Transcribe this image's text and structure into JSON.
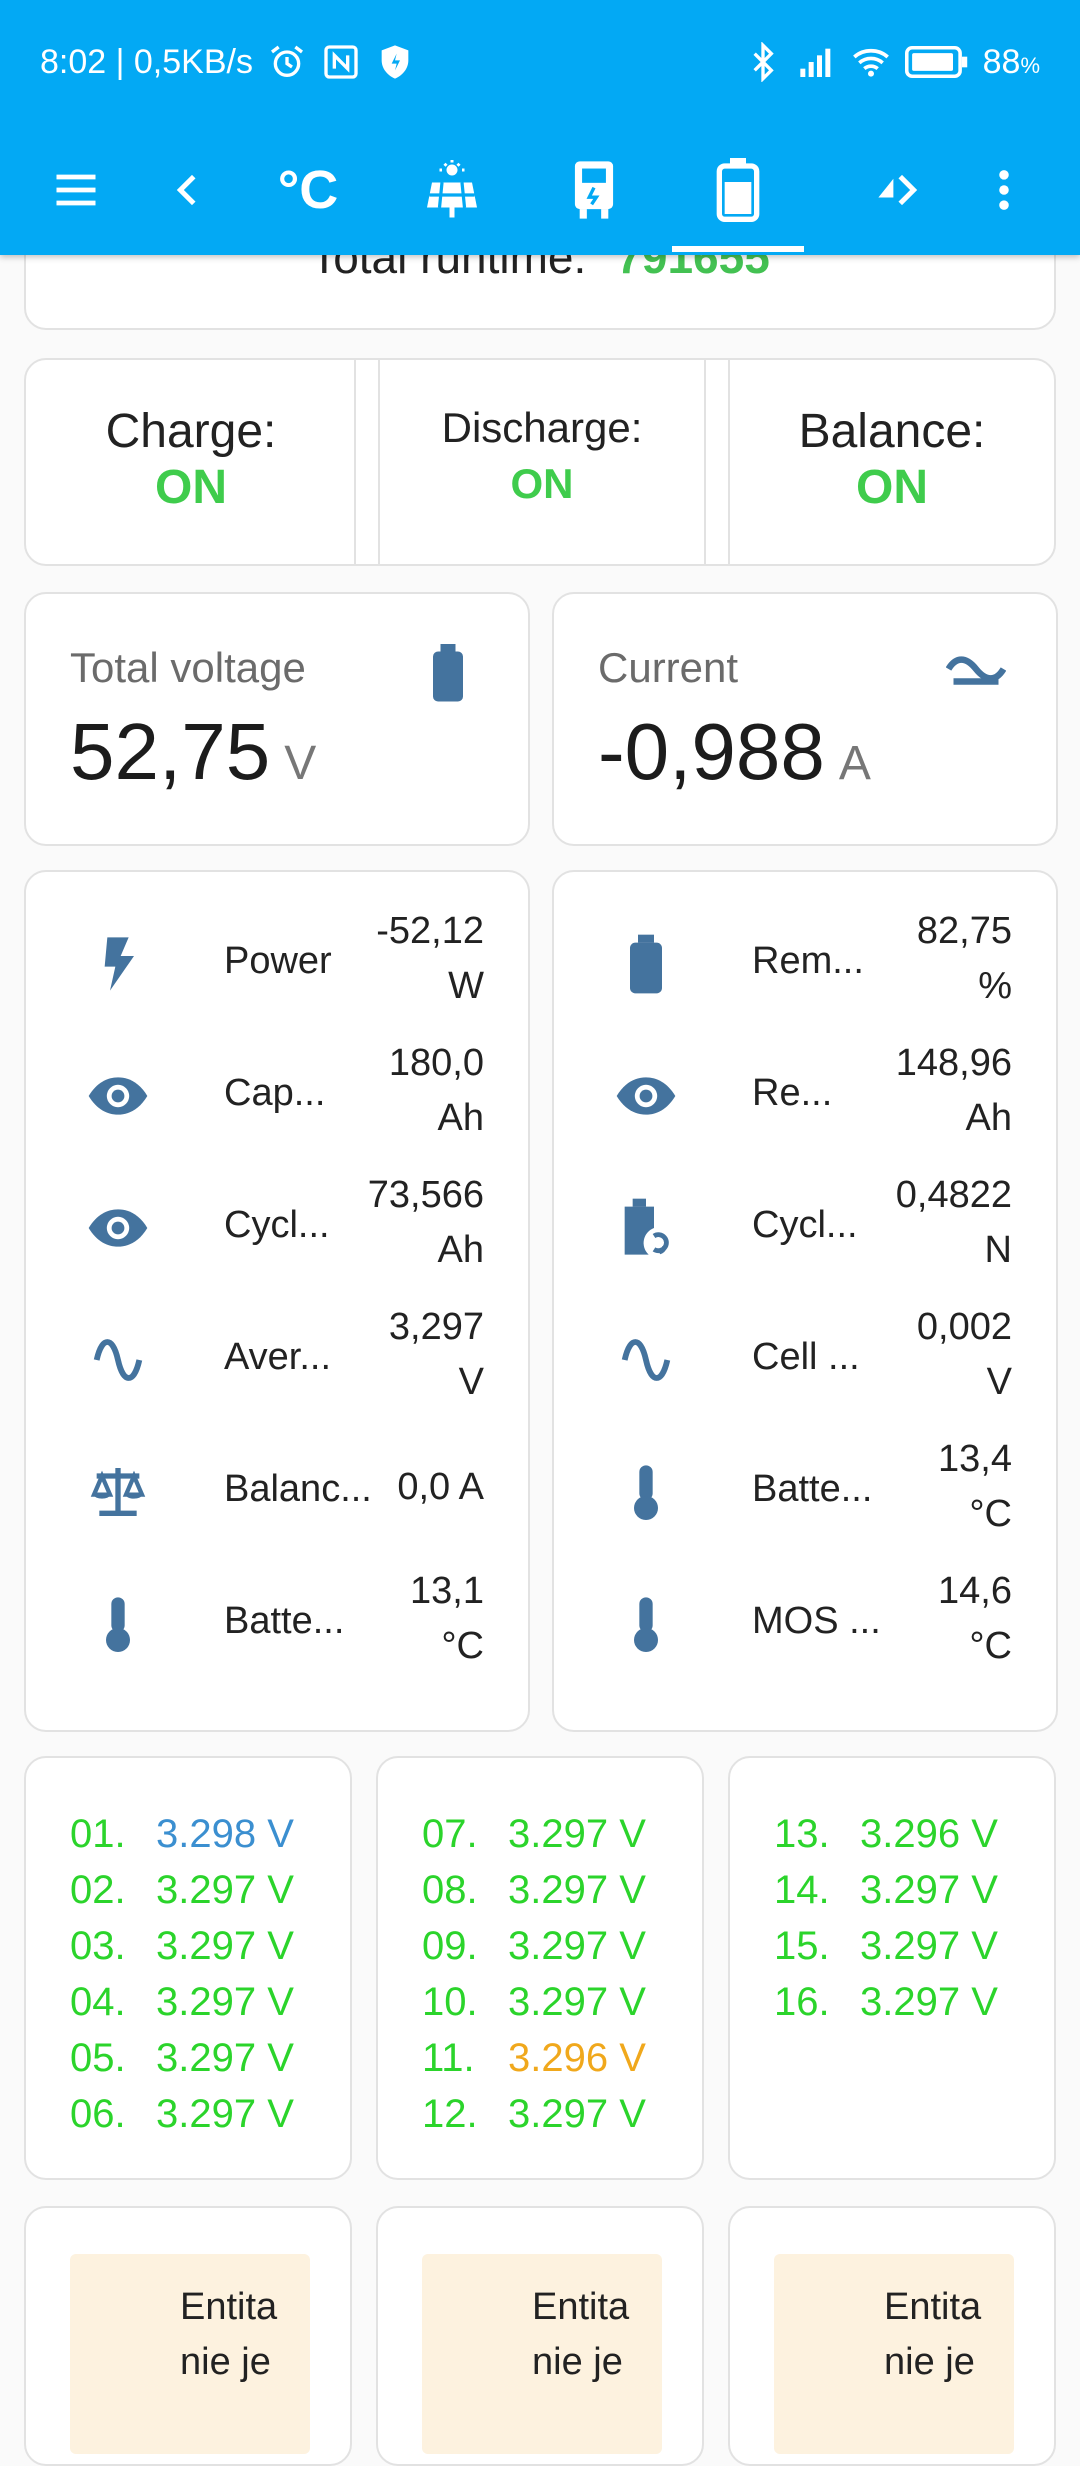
{
  "status": {
    "time_speed": "8:02 | 0,5KB/s",
    "battery_pct": "88",
    "battery_suffix": "%"
  },
  "toolbar": {
    "temp_icon_label": "°C"
  },
  "runtime": {
    "label": "Total runtime:",
    "value": "791655"
  },
  "switches": [
    {
      "label": "Charge:",
      "value": "ON"
    },
    {
      "label": "Discharge:",
      "value": "ON"
    },
    {
      "label": "Balance:",
      "value": "ON"
    }
  ],
  "voltage": {
    "title": "Total voltage",
    "value": "52,75",
    "unit": "V"
  },
  "current": {
    "title": "Current",
    "value": "-0,988",
    "unit": "A"
  },
  "left_entities": [
    {
      "icon": "lightning-icon",
      "name": "Power",
      "value": "-52,12",
      "unit": "W"
    },
    {
      "icon": "eye-icon",
      "name": "Cap...",
      "value": "180,0",
      "unit": "Ah"
    },
    {
      "icon": "eye-icon",
      "name": "Cycl...",
      "value": "73,566",
      "unit": "Ah"
    },
    {
      "icon": "sine-wave-icon",
      "name": "Aver...",
      "value": "3,297",
      "unit": "V"
    },
    {
      "icon": "scale-balance-icon",
      "name": "Balanc...",
      "value": "0,0 A",
      "unit": ""
    },
    {
      "icon": "thermometer-icon",
      "name": "Batte...",
      "value": "13,1",
      "unit": "°C"
    }
  ],
  "right_entities": [
    {
      "icon": "battery-icon",
      "name": "Rem...",
      "value": "82,75",
      "unit": "%"
    },
    {
      "icon": "eye-icon",
      "name": "Re...",
      "value": "148,96",
      "unit": "Ah"
    },
    {
      "icon": "battery-sync-icon",
      "name": "Cycl...",
      "value": "0,4822",
      "unit": "N"
    },
    {
      "icon": "sine-wave-icon",
      "name": "Cell ...",
      "value": "0,002",
      "unit": "V"
    },
    {
      "icon": "thermometer-icon",
      "name": "Batte...",
      "value": "13,4",
      "unit": "°C"
    },
    {
      "icon": "thermometer-icon",
      "name": "MOS ...",
      "value": "14,6",
      "unit": "°C"
    }
  ],
  "cells": [
    [
      {
        "n": "01.",
        "v": "3.298 V",
        "color": "#3b8fd0"
      },
      {
        "n": "02.",
        "v": "3.297 V",
        "color": "#2bd42b"
      },
      {
        "n": "03.",
        "v": "3.297 V",
        "color": "#2bd42b"
      },
      {
        "n": "04.",
        "v": "3.297 V",
        "color": "#2bd42b"
      },
      {
        "n": "05.",
        "v": "3.297 V",
        "color": "#2bd42b"
      },
      {
        "n": "06.",
        "v": "3.297 V",
        "color": "#2bd42b"
      }
    ],
    [
      {
        "n": "07.",
        "v": "3.297 V",
        "color": "#2bd42b"
      },
      {
        "n": "08.",
        "v": "3.297 V",
        "color": "#2bd42b"
      },
      {
        "n": "09.",
        "v": "3.297 V",
        "color": "#2bd42b"
      },
      {
        "n": "10.",
        "v": "3.297 V",
        "color": "#2bd42b"
      },
      {
        "n": "11.",
        "v": "3.296 V",
        "color": "#f0a81c"
      },
      {
        "n": "12.",
        "v": "3.297 V",
        "color": "#2bd42b"
      }
    ],
    [
      {
        "n": "13.",
        "v": "3.296 V",
        "color": "#2bd42b"
      },
      {
        "n": "14.",
        "v": "3.297 V",
        "color": "#2bd42b"
      },
      {
        "n": "15.",
        "v": "3.297 V",
        "color": "#2bd42b"
      },
      {
        "n": "16.",
        "v": "3.297 V",
        "color": "#2bd42b"
      }
    ]
  ],
  "warnings": [
    {
      "line1": "Entita",
      "line2": "nie je"
    },
    {
      "line1": "Entita",
      "line2": "nie je"
    },
    {
      "line1": "Entita",
      "line2": "nie je"
    }
  ],
  "colors": {
    "accent": "#03a9f4",
    "on_green": "#3fcc4c",
    "icon_blue": "#44739e"
  }
}
